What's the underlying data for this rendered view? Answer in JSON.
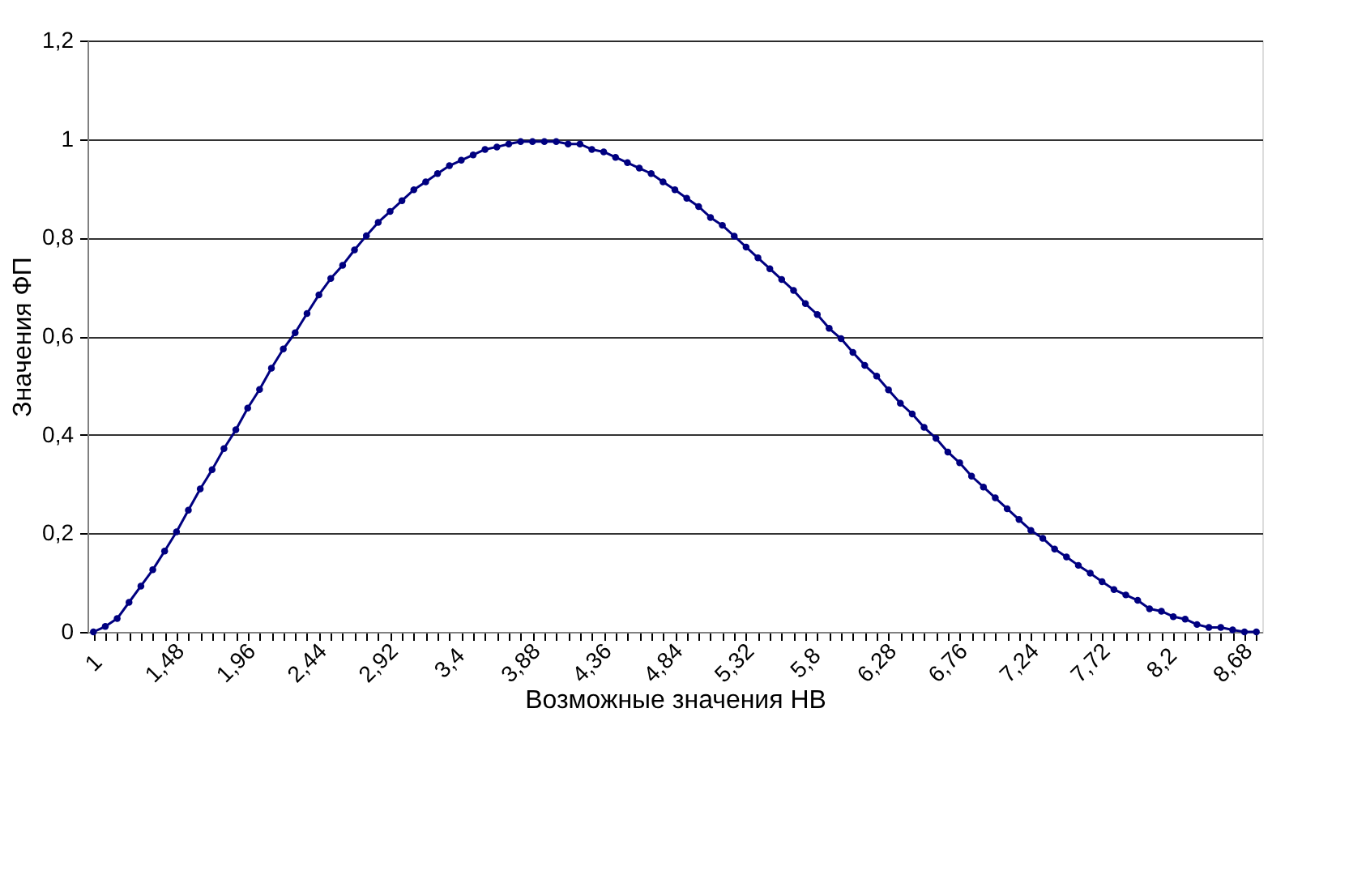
{
  "chart_data": {
    "type": "line",
    "xlabel": "Возможные значения НВ",
    "ylabel": "Значения ФП",
    "categories": [
      "1",
      null,
      null,
      null,
      null,
      null,
      "1,48",
      null,
      null,
      null,
      null,
      null,
      "1,96",
      null,
      null,
      null,
      null,
      null,
      "2,44",
      null,
      null,
      null,
      null,
      null,
      "2,92",
      null,
      null,
      null,
      null,
      null,
      "3,4",
      null,
      null,
      null,
      null,
      null,
      "3,88",
      null,
      null,
      null,
      null,
      null,
      "4,36",
      null,
      null,
      null,
      null,
      null,
      "4,84",
      null,
      null,
      null,
      null,
      null,
      "5,32",
      null,
      null,
      null,
      null,
      null,
      "5,8",
      null,
      null,
      null,
      null,
      null,
      "6,28",
      null,
      null,
      null,
      null,
      null,
      "6,76",
      null,
      null,
      null,
      null,
      null,
      "7,24",
      null,
      null,
      null,
      null,
      null,
      "7,72",
      null,
      null,
      null,
      null,
      null,
      "8,2",
      null,
      null,
      null,
      null,
      null,
      "8,68",
      null,
      null
    ],
    "series": [
      {
        "color": "#000080",
        "values": [
          0,
          0.011,
          0.027,
          0.06,
          0.093,
          0.126,
          0.164,
          0.203,
          0.247,
          0.29,
          0.329,
          0.372,
          0.41,
          0.454,
          0.492,
          0.535,
          0.574,
          0.607,
          0.646,
          0.684,
          0.717,
          0.744,
          0.775,
          0.804,
          0.831,
          0.853,
          0.875,
          0.897,
          0.913,
          0.93,
          0.946,
          0.957,
          0.968,
          0.979,
          0.984,
          0.99,
          0.995,
          0.995,
          0.995,
          0.995,
          0.99,
          0.99,
          0.979,
          0.974,
          0.963,
          0.952,
          0.941,
          0.93,
          0.913,
          0.897,
          0.88,
          0.863,
          0.841,
          0.825,
          0.803,
          0.781,
          0.759,
          0.737,
          0.715,
          0.693,
          0.666,
          0.644,
          0.616,
          0.595,
          0.567,
          0.541,
          0.519,
          0.491,
          0.464,
          0.442,
          0.415,
          0.393,
          0.365,
          0.343,
          0.316,
          0.294,
          0.272,
          0.25,
          0.228,
          0.206,
          0.19,
          0.168,
          0.152,
          0.135,
          0.119,
          0.102,
          0.086,
          0.075,
          0.064,
          0.047,
          0.042,
          0.031,
          0.026,
          0.015,
          0.009,
          0.009,
          0.004,
          0,
          0
        ]
      }
    ],
    "ylim": [
      0,
      1.2
    ],
    "yticks": [
      0,
      {
        "value": 0.2,
        "label": "0,2"
      },
      {
        "value": 0.4,
        "label": "0,4"
      },
      {
        "value": 0.6,
        "label": "0,6"
      },
      {
        "value": 0.8,
        "label": "0,8"
      },
      1,
      {
        "value": 1.2,
        "label": "1,2"
      }
    ],
    "grid": "y",
    "marker": "circle",
    "line_style": "solid"
  }
}
